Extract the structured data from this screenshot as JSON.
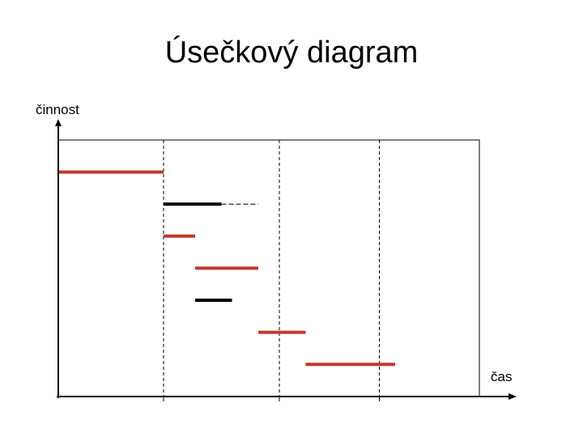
{
  "title": "Úsečkový diagram",
  "y_axis_label": "činnost",
  "x_axis_label": "čas",
  "colors": {
    "orange": "#c0392b",
    "black": "#000000"
  },
  "diagram": {
    "type": "gantt-style segment diagram",
    "activities": [
      {
        "row": 1,
        "start": 0.0,
        "end": 1.0,
        "color": "orange"
      },
      {
        "row": 2,
        "start": 1.0,
        "end": 1.55,
        "color": "black",
        "slack_end": 1.9
      },
      {
        "row": 3,
        "start": 1.0,
        "end": 1.3,
        "color": "orange"
      },
      {
        "row": 4,
        "start": 1.3,
        "end": 1.9,
        "color": "orange"
      },
      {
        "row": 5,
        "start": 1.3,
        "end": 1.65,
        "color": "black"
      },
      {
        "row": 6,
        "start": 1.9,
        "end": 2.35,
        "color": "orange"
      },
      {
        "row": 7,
        "start": 2.35,
        "end": 3.2,
        "color": "orange"
      }
    ],
    "milestones": [
      1.0,
      2.1,
      3.05
    ],
    "time_max": 3.85,
    "rows": 7
  }
}
